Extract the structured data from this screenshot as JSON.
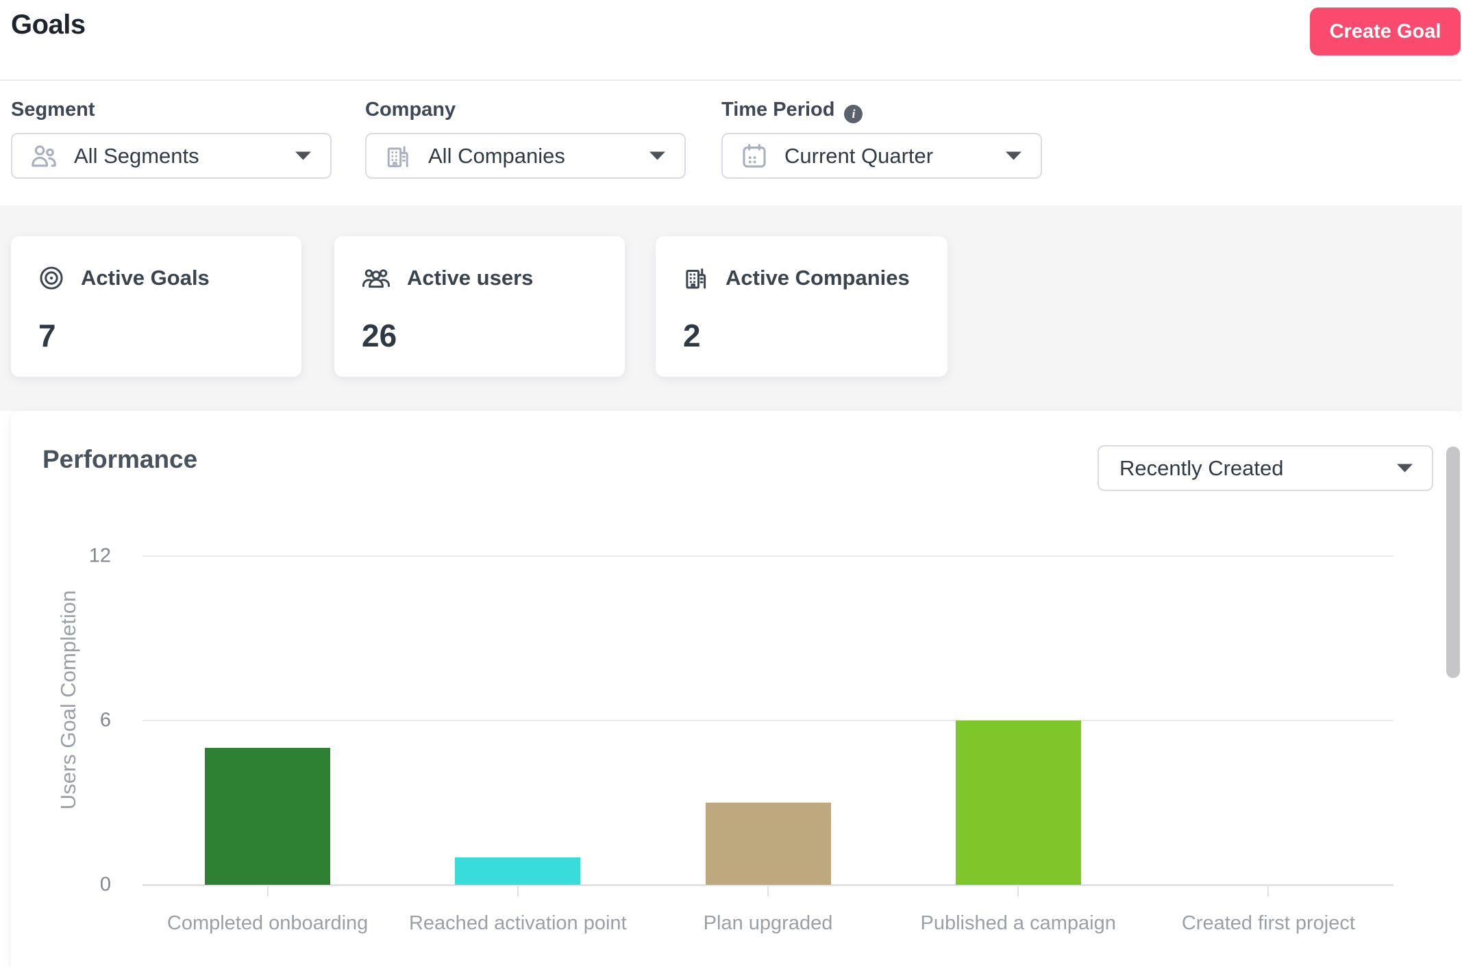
{
  "header": {
    "title": "Goals",
    "create_button": "Create Goal"
  },
  "filters": {
    "segment": {
      "label": "Segment",
      "value": "All Segments",
      "icon": "users-icon"
    },
    "company": {
      "label": "Company",
      "value": "All Companies",
      "icon": "building-icon"
    },
    "time_period": {
      "label": "Time Period",
      "value": "Current Quarter",
      "icon": "calendar-icon",
      "info_icon": "i"
    }
  },
  "stats": [
    {
      "label": "Active Goals",
      "value": "7",
      "icon": "target-icon"
    },
    {
      "label": "Active users",
      "value": "26",
      "icon": "users-group-icon"
    },
    {
      "label": "Active Companies",
      "value": "2",
      "icon": "building-icon"
    }
  ],
  "performance": {
    "title": "Performance",
    "sort_dropdown": "Recently Created"
  },
  "chart_data": {
    "type": "bar",
    "title": "Performance",
    "categories": [
      "Completed onboarding",
      "Reached activation point",
      "Plan upgraded",
      "Published a campaign",
      "Created first project"
    ],
    "values": [
      5,
      1,
      3,
      6,
      0
    ],
    "bar_colors": [
      "#2e8132",
      "#38dcda",
      "#bda97d",
      "#7fc62b",
      null
    ],
    "xlabel": "",
    "ylabel": "Users Goal Completion",
    "ylim": [
      0,
      12
    ],
    "yticks": [
      0,
      6,
      12
    ],
    "grid": true,
    "legend": false
  },
  "colors": {
    "accent_pink": "#fa4b6e",
    "band_background": "#f5f5f6",
    "card_background": "#ffffff",
    "border": "#d9dce7",
    "axis_text": "#9aa0a6"
  }
}
